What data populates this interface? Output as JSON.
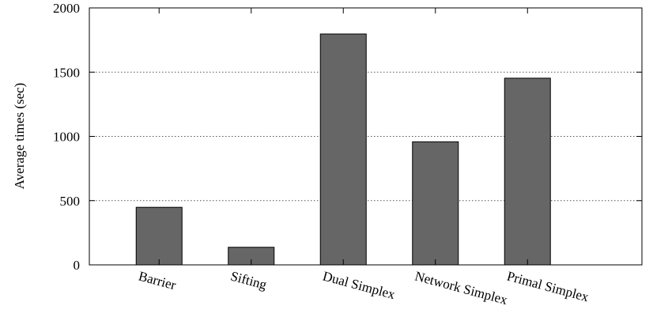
{
  "chart_data": {
    "type": "bar",
    "title": "",
    "xlabel": "",
    "ylabel": "Average times (sec)",
    "categories": [
      "Barrier",
      "Sifting",
      "Dual Simplex",
      "Network Simplex",
      "Primal Simplex"
    ],
    "values": [
      448,
      137,
      1797,
      958,
      1453
    ],
    "ylim": [
      0,
      2000
    ],
    "yticks": [
      0,
      500,
      1000,
      1500,
      2000
    ],
    "grid": "horizontal dotted",
    "legend": "none",
    "colors": {
      "bar_fill": "#666666",
      "bar_stroke": "#000000",
      "grid": "#555555"
    }
  }
}
